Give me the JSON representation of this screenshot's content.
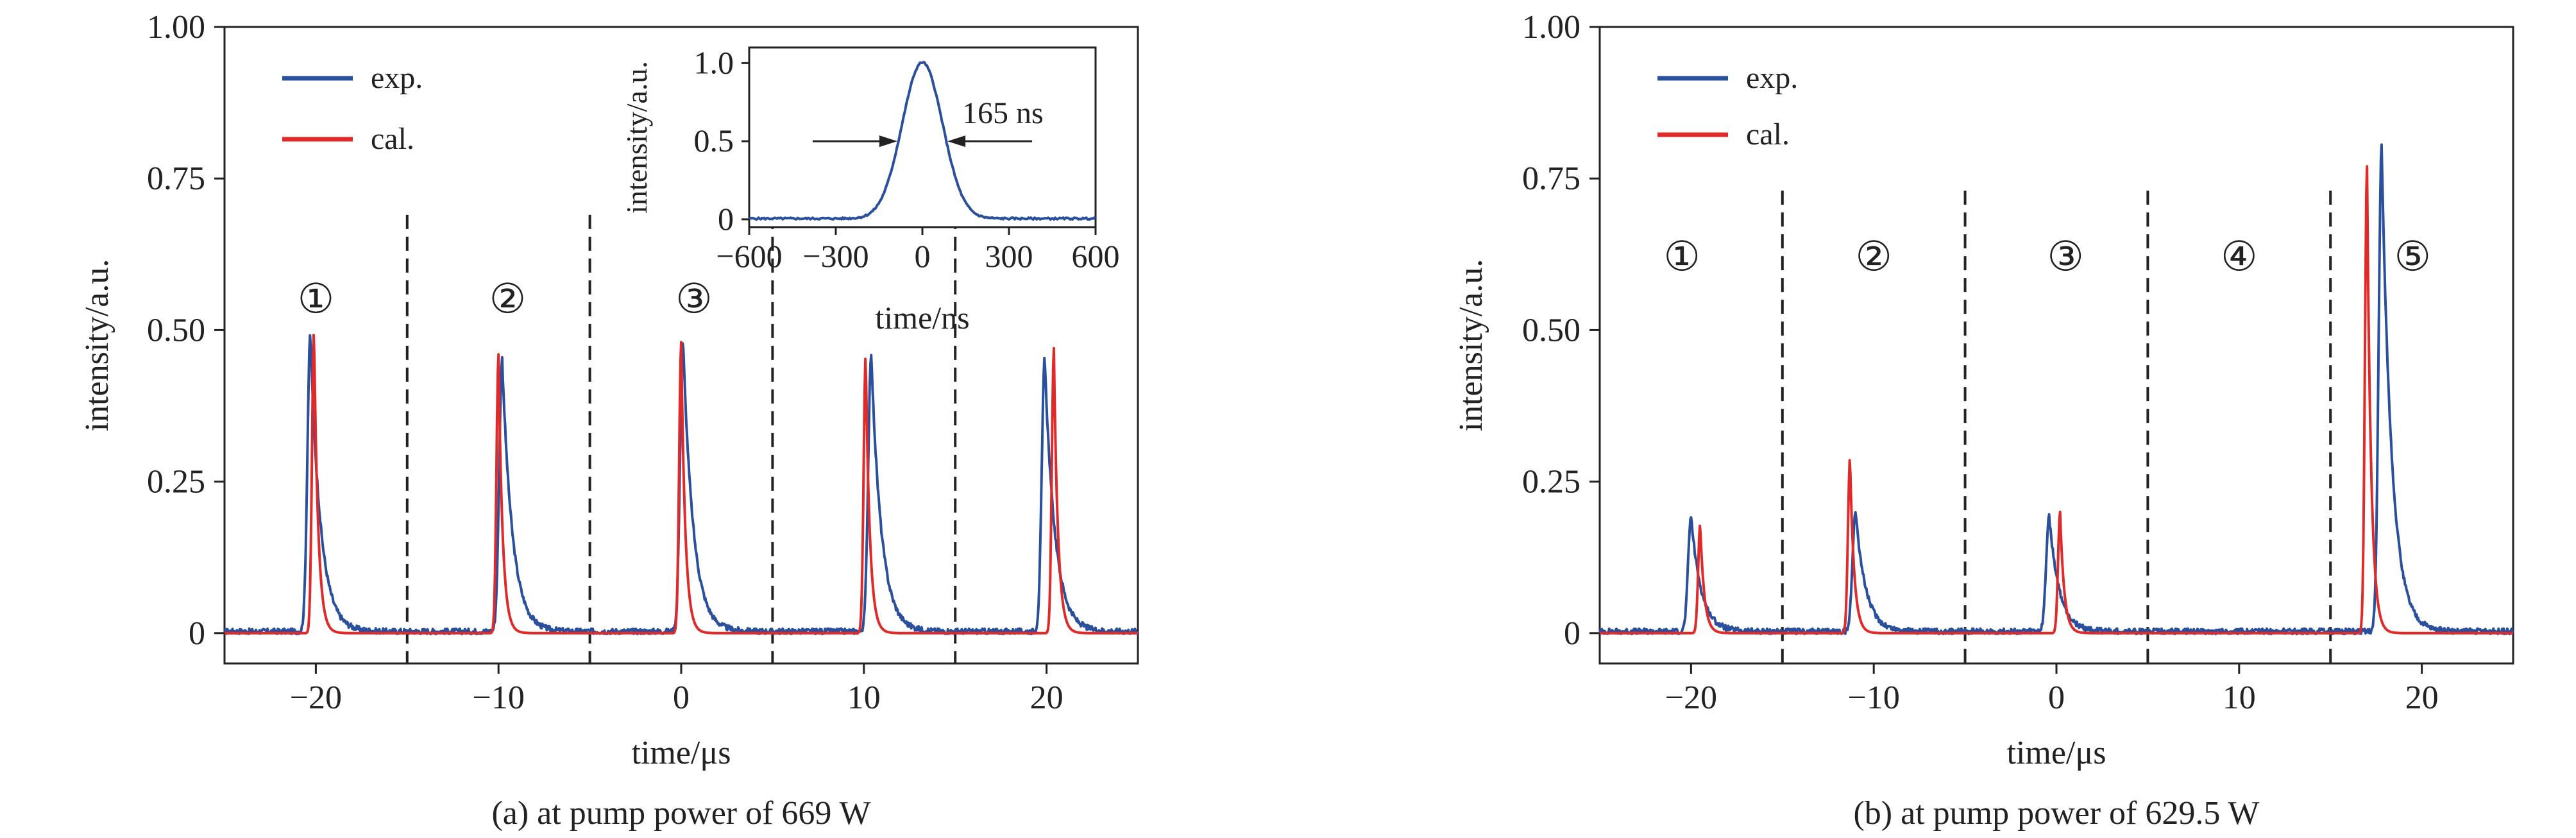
{
  "chart_data": [
    {
      "type": "line",
      "caption": "(a) at pump power of 669 W",
      "xlabel": "time/μs",
      "ylabel": "intensity/a.u.",
      "xlim": [
        -25,
        25
      ],
      "ylim": [
        -0.05,
        1.0
      ],
      "xticks": [
        -20,
        -10,
        0,
        10,
        20
      ],
      "xtick_labels": [
        "−20",
        "−10",
        "0",
        "10",
        "20"
      ],
      "yticks": [
        0,
        0.25,
        0.5,
        0.75,
        1.0
      ],
      "ytick_labels": [
        "0",
        "0.25",
        "0.50",
        "0.75",
        "1.00"
      ],
      "legend": {
        "placement": "top-left",
        "entries": [
          "exp.",
          "cal."
        ]
      },
      "colors": {
        "exp.": "#2a4f9d",
        "cal.": "#e02a2a"
      },
      "dividers_x": [
        -15,
        -5,
        5,
        15
      ],
      "region_labels": [
        {
          "text": "①",
          "x": -20,
          "y": 0.52
        },
        {
          "text": "②",
          "x": -9.5,
          "y": 0.52
        },
        {
          "text": "③",
          "x": 0.7,
          "y": 0.52
        }
      ],
      "series": [
        {
          "name": "exp.",
          "peaks": [
            {
              "x": -20.3,
              "y": 0.49
            },
            {
              "x": -9.8,
              "y": 0.45
            },
            {
              "x": 0.1,
              "y": 0.48
            },
            {
              "x": 10.4,
              "y": 0.46
            },
            {
              "x": 19.9,
              "y": 0.45
            }
          ]
        },
        {
          "name": "cal.",
          "peaks": [
            {
              "x": -20.1,
              "y": 0.5
            },
            {
              "x": -10.0,
              "y": 0.46
            },
            {
              "x": 0.0,
              "y": 0.48
            },
            {
              "x": 10.1,
              "y": 0.46
            },
            {
              "x": 20.4,
              "y": 0.47
            }
          ]
        }
      ],
      "inset": {
        "type": "line",
        "xlabel": "time/ns",
        "ylabel": "intensity/a.u.",
        "xlim": [
          -600,
          600
        ],
        "ylim": [
          -0.05,
          1.1
        ],
        "xticks": [
          -600,
          -300,
          0,
          300,
          600
        ],
        "xtick_labels": [
          "−600",
          "−300",
          "0",
          "300",
          "600"
        ],
        "yticks": [
          0,
          0.5,
          1.0
        ],
        "ytick_labels": [
          "0",
          "0.5",
          "1.0"
        ],
        "annotation": "165 ns",
        "fwhm_ns": 165,
        "peak": 1.0
      }
    },
    {
      "type": "line",
      "caption": "(b) at pump power of 629.5 W",
      "xlabel": "time/μs",
      "ylabel": "intensity/a.u.",
      "xlim": [
        -25,
        25
      ],
      "ylim": [
        -0.05,
        1.0
      ],
      "xticks": [
        -20,
        -10,
        0,
        10,
        20
      ],
      "xtick_labels": [
        "−20",
        "−10",
        "0",
        "10",
        "20"
      ],
      "yticks": [
        0,
        0.25,
        0.5,
        0.75,
        1.0
      ],
      "ytick_labels": [
        "0",
        "0.25",
        "0.50",
        "0.75",
        "1.00"
      ],
      "legend": {
        "placement": "top-left",
        "entries": [
          "exp.",
          "cal."
        ]
      },
      "colors": {
        "exp.": "#2a4f9d",
        "cal.": "#e02a2a"
      },
      "dividers_x": [
        -15,
        -5,
        5,
        15
      ],
      "region_labels": [
        {
          "text": "①",
          "x": -20.5,
          "y": 0.59
        },
        {
          "text": "②",
          "x": -10,
          "y": 0.59
        },
        {
          "text": "③",
          "x": 0.5,
          "y": 0.59
        },
        {
          "text": "④",
          "x": 10,
          "y": 0.59
        },
        {
          "text": "⑤",
          "x": 19.5,
          "y": 0.59
        }
      ],
      "series": [
        {
          "name": "exp.",
          "peaks": [
            {
              "x": -20.0,
              "y": 0.19
            },
            {
              "x": -11.0,
              "y": 0.2
            },
            {
              "x": -0.4,
              "y": 0.19
            },
            {
              "x": 17.8,
              "y": 0.8
            }
          ]
        },
        {
          "name": "cal.",
          "peaks": [
            {
              "x": -19.5,
              "y": 0.18
            },
            {
              "x": -11.3,
              "y": 0.29
            },
            {
              "x": 0.2,
              "y": 0.2
            },
            {
              "x": 17.0,
              "y": 0.77
            }
          ]
        }
      ]
    }
  ]
}
